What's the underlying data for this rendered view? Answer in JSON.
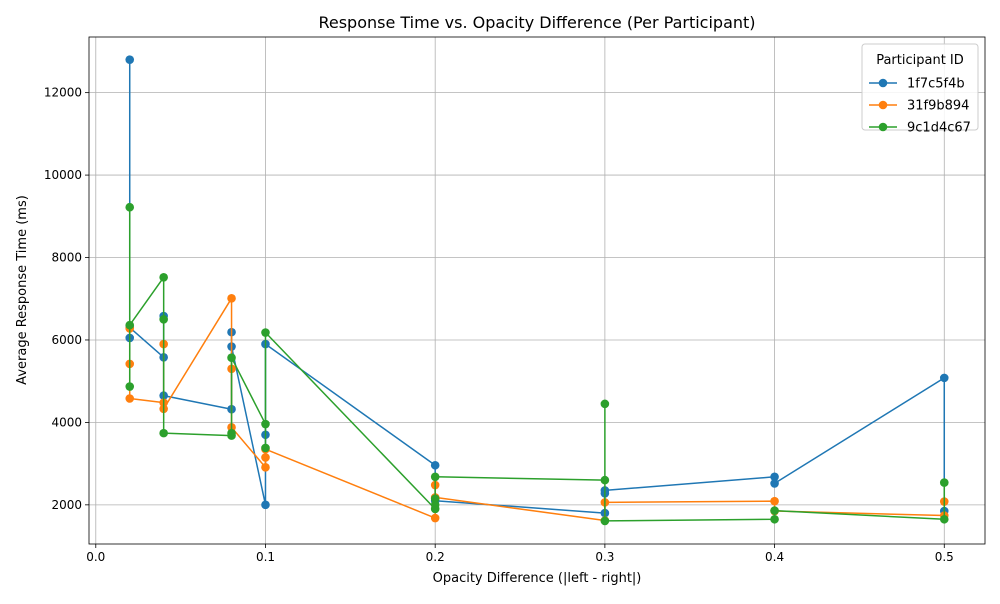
{
  "chart_data": {
    "type": "line",
    "title": "Response Time vs. Opacity Difference (Per Participant)",
    "xlabel": "Opacity Difference (|left - right|)",
    "ylabel": "Average Response Time (ms)",
    "xlim": [
      -0.004,
      0.524
    ],
    "ylim": [
      1050,
      13350
    ],
    "x_ticks": [
      0.0,
      0.1,
      0.2,
      0.3,
      0.4,
      0.5
    ],
    "x_tick_labels": [
      "0.0",
      "0.1",
      "0.2",
      "0.3",
      "0.4",
      "0.5"
    ],
    "y_ticks": [
      2000,
      4000,
      6000,
      8000,
      10000,
      12000
    ],
    "y_tick_labels": [
      "2000",
      "4000",
      "6000",
      "8000",
      "10000",
      "12000"
    ],
    "grid": true,
    "legend": {
      "title": "Participant ID",
      "placement": "top-right"
    },
    "series": [
      {
        "name": "1f7c5f4b",
        "color": "#1f77b4",
        "points": [
          [
            0.02,
            12800
          ],
          [
            0.02,
            6050
          ],
          [
            0.02,
            6300
          ],
          [
            0.04,
            5580
          ],
          [
            0.04,
            6580
          ],
          [
            0.04,
            4650
          ],
          [
            0.08,
            4320
          ],
          [
            0.08,
            6190
          ],
          [
            0.08,
            5840
          ],
          [
            0.1,
            2000
          ],
          [
            0.1,
            3700
          ],
          [
            0.1,
            5900
          ],
          [
            0.2,
            2960
          ],
          [
            0.2,
            2100
          ],
          [
            0.3,
            1800
          ],
          [
            0.3,
            2280
          ],
          [
            0.3,
            2350
          ],
          [
            0.4,
            2680
          ],
          [
            0.4,
            2520
          ],
          [
            0.5,
            5080
          ],
          [
            0.5,
            1850
          ]
        ]
      },
      {
        "name": "31f9b894",
        "color": "#ff7f0e",
        "points": [
          [
            0.02,
            5420
          ],
          [
            0.02,
            6280
          ],
          [
            0.02,
            4580
          ],
          [
            0.04,
            4480
          ],
          [
            0.04,
            5900
          ],
          [
            0.04,
            4330
          ],
          [
            0.08,
            7010
          ],
          [
            0.08,
            5300
          ],
          [
            0.08,
            3880
          ],
          [
            0.1,
            2910
          ],
          [
            0.1,
            3150
          ],
          [
            0.1,
            3350
          ],
          [
            0.2,
            1680
          ],
          [
            0.2,
            2480
          ],
          [
            0.2,
            2180
          ],
          [
            0.3,
            1620
          ],
          [
            0.3,
            2060
          ],
          [
            0.4,
            2090
          ],
          [
            0.4,
            1850
          ],
          [
            0.5,
            1740
          ],
          [
            0.5,
            2080
          ]
        ]
      },
      {
        "name": "9c1d4c67",
        "color": "#2ca02c",
        "points": [
          [
            0.02,
            9220
          ],
          [
            0.02,
            4870
          ],
          [
            0.02,
            6360
          ],
          [
            0.04,
            7520
          ],
          [
            0.04,
            6500
          ],
          [
            0.04,
            3740
          ],
          [
            0.08,
            3680
          ],
          [
            0.08,
            3740
          ],
          [
            0.08,
            5570
          ],
          [
            0.1,
            3960
          ],
          [
            0.1,
            3380
          ],
          [
            0.1,
            6180
          ],
          [
            0.2,
            1900
          ],
          [
            0.2,
            2000
          ],
          [
            0.2,
            2150
          ],
          [
            0.2,
            2680
          ],
          [
            0.3,
            2600
          ],
          [
            0.3,
            4450
          ],
          [
            0.3,
            1610
          ],
          [
            0.4,
            1650
          ],
          [
            0.4,
            1860
          ],
          [
            0.5,
            1650
          ],
          [
            0.5,
            2540
          ]
        ]
      }
    ]
  }
}
